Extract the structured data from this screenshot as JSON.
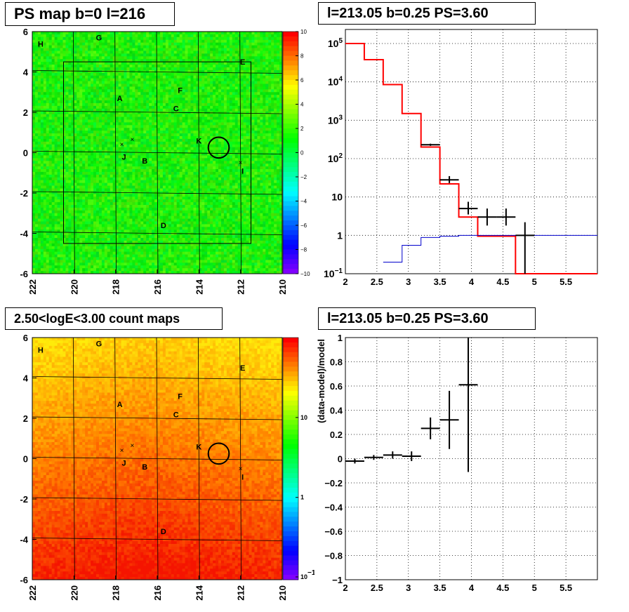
{
  "titles": {
    "tl": "PS map b=0 l=216",
    "tr": "l=213.05 b=0.25 PS=3.60",
    "bl": "2.50<logE<3.00 count maps",
    "br": "l=213.05 b=0.25 PS=3.60"
  },
  "colors": {
    "hist_red": "#ff0000",
    "hist_blue": "#0000cc",
    "data_black": "#000000"
  },
  "chart_data": [
    {
      "id": "ps_map",
      "type": "heatmap",
      "title": "PS map b=0 l=216",
      "x_ticks": [
        "222",
        "220",
        "218",
        "216",
        "214",
        "212",
        "210"
      ],
      "y_ticks": [
        "6",
        "4",
        "2",
        "0",
        "-2",
        "-4",
        "-6"
      ],
      "xlim": [
        222,
        210
      ],
      "ylim": [
        -6,
        6
      ],
      "colorbar": {
        "ticks": [
          "10",
          "8",
          "6",
          "4",
          "2",
          "0",
          "−2",
          "−4",
          "−6",
          "−8",
          "−10"
        ],
        "range": [
          -10,
          10
        ]
      },
      "sources": [
        {
          "label": "H",
          "l": 221.6,
          "b": 5.4
        },
        {
          "label": "G",
          "l": 218.8,
          "b": 5.7
        },
        {
          "label": "E",
          "l": 211.9,
          "b": 4.5
        },
        {
          "label": "A",
          "l": 217.8,
          "b": 2.7
        },
        {
          "label": "F",
          "l": 214.9,
          "b": 3.1
        },
        {
          "label": "C",
          "l": 215.1,
          "b": 2.2
        },
        {
          "label": "K",
          "l": 214.0,
          "b": 0.6
        },
        {
          "label": "J",
          "l": 217.6,
          "b": -0.2
        },
        {
          "label": "B",
          "l": 216.6,
          "b": -0.4
        },
        {
          "label": "I",
          "l": 211.9,
          "b": -0.9
        },
        {
          "label": "D",
          "l": 215.7,
          "b": -3.6
        }
      ],
      "circle": {
        "l": 213.05,
        "b": 0.25,
        "r": 0.5
      },
      "roi": {
        "l_range": [
          220.5,
          211.5
        ],
        "b_range": [
          -4.5,
          4.5
        ]
      }
    },
    {
      "id": "spectrum",
      "type": "line",
      "title": "l=213.05 b=0.25 PS=3.60",
      "x_ticks": [
        "2",
        "2.5",
        "3",
        "3.5",
        "4",
        "4.5",
        "5",
        "5.5"
      ],
      "y_ticks": [
        "10^5",
        "10^4",
        "10^3",
        "10^2",
        "10",
        "1",
        "10^-1"
      ],
      "xlim": [
        2.0,
        6.0
      ],
      "ylim": [
        0.1,
        100000
      ],
      "yscale": "log",
      "grid": true,
      "series": [
        {
          "style": "step-red",
          "bin_edges": [
            2.0,
            2.3,
            2.6,
            2.9,
            3.2,
            3.5,
            3.8,
            4.1,
            4.4,
            4.7,
            5.0,
            6.0
          ],
          "values": [
            100000,
            38000,
            8500,
            1500,
            200,
            22,
            3,
            0.95,
            0.95,
            0.1,
            0.1
          ]
        },
        {
          "style": "step-blue",
          "bin_edges": [
            2.6,
            2.9,
            3.2,
            3.5,
            3.8,
            4.1,
            6.0
          ],
          "values": [
            0.2,
            0.55,
            0.88,
            0.95,
            1.0,
            1.0
          ]
        },
        {
          "style": "points-black",
          "x": [
            3.35,
            3.65,
            3.95,
            4.25,
            4.55,
            4.85
          ],
          "y": [
            230,
            28,
            5,
            3,
            3,
            1
          ],
          "xerr": [
            0.15,
            0.15,
            0.15,
            0.15,
            0.15,
            0.15
          ],
          "yerr_low": [
            15,
            5,
            1.5,
            1.2,
            1.2,
            0.95
          ],
          "yerr_high": [
            15,
            7,
            2.5,
            2,
            2,
            1.2
          ]
        }
      ]
    },
    {
      "id": "count_map",
      "type": "heatmap",
      "title": "2.50<logE<3.00 count maps",
      "x_ticks": [
        "222",
        "220",
        "218",
        "216",
        "214",
        "212",
        "210"
      ],
      "y_ticks": [
        "6",
        "4",
        "2",
        "0",
        "-2",
        "-4",
        "-6"
      ],
      "xlim": [
        222,
        210
      ],
      "ylim": [
        -6,
        6
      ],
      "colorbar": {
        "ticks": [
          "10",
          "1",
          "10^-1"
        ],
        "scale": "log"
      }
    },
    {
      "id": "residual",
      "type": "scatter",
      "title": "l=213.05 b=0.25 PS=3.60",
      "ylabel": "(data-model)/model",
      "x_ticks": [
        "2",
        "2.5",
        "3",
        "3.5",
        "4",
        "4.5",
        "5",
        "5.5"
      ],
      "y_ticks": [
        "1",
        "0.8",
        "0.6",
        "0.4",
        "0.2",
        "0",
        "−0.2",
        "−0.4",
        "−0.6",
        "−0.8",
        "−1"
      ],
      "xlim": [
        2.0,
        6.0
      ],
      "ylim": [
        -1,
        1
      ],
      "grid": true,
      "points": {
        "x": [
          2.15,
          2.45,
          2.75,
          3.05,
          3.35,
          3.65,
          3.95
        ],
        "y": [
          -0.02,
          0.01,
          0.03,
          0.02,
          0.25,
          0.32,
          0.61
        ],
        "xerr": [
          0.15,
          0.15,
          0.15,
          0.15,
          0.15,
          0.15,
          0.15
        ],
        "yerr": [
          0.02,
          0.02,
          0.03,
          0.04,
          0.09,
          0.24,
          0.72
        ]
      }
    }
  ]
}
